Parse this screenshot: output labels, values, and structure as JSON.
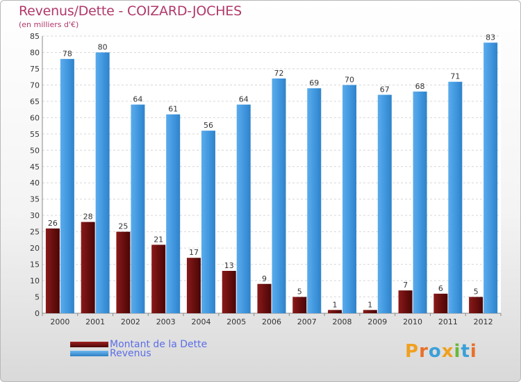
{
  "chart_data": {
    "type": "bar",
    "title": "Revenus/Dette - COIZARD-JOCHES",
    "subtitle": "(en milliers d'€)",
    "categories": [
      "2000",
      "2001",
      "2002",
      "2003",
      "2004",
      "2005",
      "2006",
      "2007",
      "2008",
      "2009",
      "2010",
      "2011",
      "2012"
    ],
    "series": [
      {
        "name": "Montant de la Dette",
        "color": "#7a1414",
        "values": [
          26,
          28,
          25,
          21,
          17,
          13,
          9,
          5,
          1,
          1,
          7,
          6,
          5
        ]
      },
      {
        "name": "Revenus",
        "color": "#3e94dc",
        "values": [
          78,
          80,
          64,
          61,
          56,
          64,
          72,
          69,
          70,
          67,
          68,
          71,
          83
        ]
      }
    ],
    "yticks": [
      0,
      5,
      10,
      15,
      20,
      25,
      30,
      35,
      40,
      45,
      50,
      55,
      60,
      65,
      70,
      75,
      80,
      85
    ],
    "ylim": [
      0,
      85
    ],
    "grid": true,
    "data_labels": true,
    "legend_position": "bottom-left"
  },
  "logo": {
    "text": "Proxiti",
    "letters": [
      {
        "ch": "P",
        "color": "#f0a020"
      },
      {
        "ch": "r",
        "color": "#e8702a"
      },
      {
        "ch": "o",
        "color": "#3aa0d8"
      },
      {
        "ch": "x",
        "color": "#f0a020"
      },
      {
        "ch": "i",
        "color": "#6ab83a"
      },
      {
        "ch": "t",
        "color": "#3aa0d8"
      },
      {
        "ch": "i",
        "color": "#e8702a"
      }
    ]
  }
}
